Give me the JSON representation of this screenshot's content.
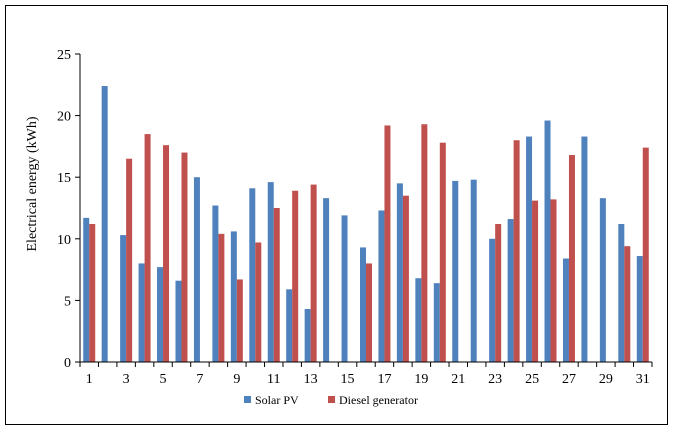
{
  "chart_data": {
    "type": "bar",
    "title": "",
    "xlabel": "",
    "ylabel": "Electrical energy (kWh)",
    "ylim": [
      0,
      25
    ],
    "yticks": [
      0,
      5,
      10,
      15,
      20,
      25
    ],
    "grid": false,
    "legend_position": "bottom",
    "categories": [
      1,
      2,
      3,
      4,
      5,
      6,
      7,
      8,
      9,
      10,
      11,
      12,
      13,
      14,
      15,
      16,
      17,
      18,
      19,
      20,
      21,
      22,
      23,
      24,
      25,
      26,
      27,
      28,
      29,
      30,
      31
    ],
    "xtick_labels": [
      "1",
      "",
      "3",
      "",
      "5",
      "",
      "7",
      "",
      "9",
      "",
      "11",
      "",
      "13",
      "",
      "15",
      "",
      "17",
      "",
      "19",
      "",
      "21",
      "",
      "23",
      "",
      "25",
      "",
      "27",
      "",
      "29",
      "",
      "31"
    ],
    "series": [
      {
        "name": "Solar PV",
        "color": "#4F81BD",
        "values": [
          11.7,
          22.4,
          10.3,
          8.0,
          7.7,
          6.6,
          15.0,
          12.7,
          10.6,
          14.1,
          14.6,
          5.9,
          4.3,
          13.3,
          11.9,
          9.3,
          12.3,
          14.5,
          6.8,
          6.4,
          14.7,
          14.8,
          10.0,
          11.6,
          18.3,
          19.6,
          8.4,
          18.3,
          13.3,
          11.2,
          8.6
        ]
      },
      {
        "name": "Diesel generator",
        "color": "#C0504D",
        "values": [
          11.2,
          0,
          16.5,
          18.5,
          17.6,
          17.0,
          0,
          10.4,
          6.7,
          9.7,
          12.5,
          13.9,
          14.4,
          0,
          0,
          8.0,
          19.2,
          13.5,
          19.3,
          17.8,
          0,
          0,
          11.2,
          18.0,
          13.1,
          13.2,
          16.8,
          0,
          0,
          9.4,
          17.4
        ]
      }
    ]
  }
}
